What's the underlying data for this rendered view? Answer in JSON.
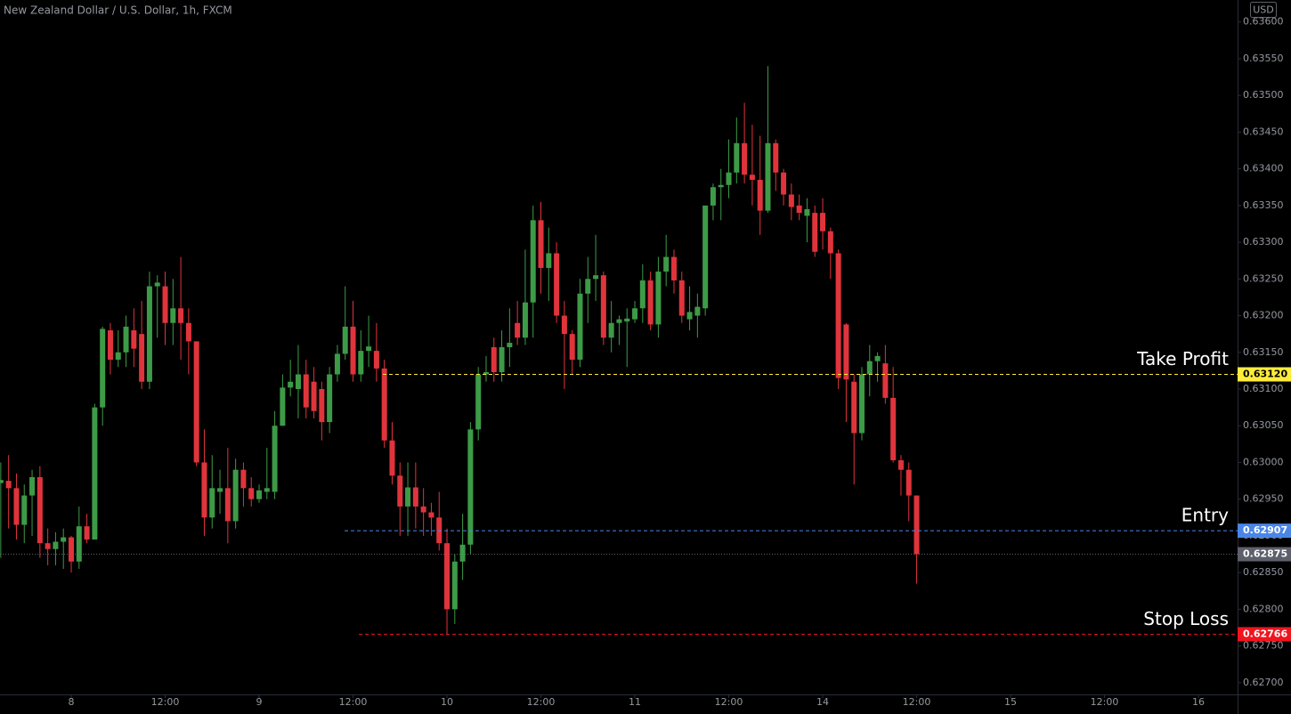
{
  "chart_data": {
    "type": "candlestick",
    "title": "New Zealand Dollar / U.S. Dollar, 1h, FXCM",
    "currency": "USD",
    "up_color": "#3d9b47",
    "down_color": "#e0343c",
    "xlim": [
      -0.1,
      158
    ],
    "ylim": [
      0.62684,
      0.6363
    ],
    "xticks": [
      {
        "value": 9,
        "label": "8"
      },
      {
        "value": 21,
        "label": "12:00"
      },
      {
        "value": 33,
        "label": "9"
      },
      {
        "value": 45,
        "label": "12:00"
      },
      {
        "value": 57,
        "label": "10"
      },
      {
        "value": 69,
        "label": "12:00"
      },
      {
        "value": 81,
        "label": "11"
      },
      {
        "value": 93,
        "label": "12:00"
      },
      {
        "value": 105,
        "label": "14"
      },
      {
        "value": 117,
        "label": "12:00"
      },
      {
        "value": 129,
        "label": "15"
      },
      {
        "value": 141,
        "label": "12:00"
      },
      {
        "value": 153,
        "label": "16"
      }
    ],
    "yticks": [
      {
        "value": 0.627,
        "label": "0.62700"
      },
      {
        "value": 0.6275,
        "label": "0.62750"
      },
      {
        "value": 0.628,
        "label": "0.62800"
      },
      {
        "value": 0.6285,
        "label": "0.62850"
      },
      {
        "value": 0.629,
        "label": "0.62900"
      },
      {
        "value": 0.6295,
        "label": "0.62950"
      },
      {
        "value": 0.63,
        "label": "0.63000"
      },
      {
        "value": 0.6305,
        "label": "0.63050"
      },
      {
        "value": 0.631,
        "label": "0.63100"
      },
      {
        "value": 0.6315,
        "label": "0.63150"
      },
      {
        "value": 0.632,
        "label": "0.63200"
      },
      {
        "value": 0.6325,
        "label": "0.63250"
      },
      {
        "value": 0.633,
        "label": "0.63300"
      },
      {
        "value": 0.6335,
        "label": "0.63350"
      },
      {
        "value": 0.634,
        "label": "0.63400"
      },
      {
        "value": 0.6345,
        "label": "0.63450"
      },
      {
        "value": 0.635,
        "label": "0.63500"
      },
      {
        "value": 0.6355,
        "label": "0.63550"
      },
      {
        "value": 0.636,
        "label": "0.63600"
      }
    ],
    "open": [
      0.62972,
      0.62975,
      0.62965,
      0.62915,
      0.62955,
      0.6298,
      0.6289,
      0.62882,
      0.62892,
      0.62898,
      0.62865,
      0.62913,
      0.62895,
      0.63075,
      0.6318,
      0.6314,
      0.6315,
      0.6318,
      0.63175,
      0.6311,
      0.6324,
      0.6324,
      0.6319,
      0.6321,
      0.6319,
      0.63165,
      0.63,
      0.62925,
      0.6296,
      0.62965,
      0.6292,
      0.6299,
      0.62965,
      0.6295,
      0.6296,
      0.6296,
      0.6305,
      0.63102,
      0.631,
      0.6312,
      0.6311,
      0.631,
      0.63055,
      0.6312,
      0.63148,
      0.63185,
      0.6312,
      0.63152,
      0.63152,
      0.63128,
      0.6303,
      0.62982,
      0.6294,
      0.62966,
      0.6294,
      0.62932,
      0.62925,
      0.6289,
      0.628,
      0.62865,
      0.62888,
      0.63045,
      0.6312,
      0.63157,
      0.63123,
      0.63157,
      0.6319,
      0.6317,
      0.63218,
      0.6333,
      0.63265,
      0.63285,
      0.632,
      0.63175,
      0.6314,
      0.6323,
      0.6325,
      0.63255,
      0.6317,
      0.6319,
      0.63192,
      0.63195,
      0.6321,
      0.63248,
      0.63188,
      0.6326,
      0.6328,
      0.63248,
      0.63195,
      0.632,
      0.6321,
      0.6335,
      0.63375,
      0.63378,
      0.63395,
      0.63435,
      0.63392,
      0.63385,
      0.63343,
      0.63435,
      0.63395,
      0.63365,
      0.6335,
      0.63336,
      0.6334,
      0.6334,
      0.63315,
      0.63285,
      0.63188,
      0.6311,
      0.6304,
      0.6312,
      0.63138,
      0.63135,
      0.63088,
      0.63003,
      0.6299,
      0.62955
    ],
    "high": [
      0.63,
      0.6301,
      0.62985,
      0.6297,
      0.6299,
      0.62995,
      0.6291,
      0.62905,
      0.6291,
      0.629,
      0.6294,
      0.6293,
      0.6308,
      0.63185,
      0.6319,
      0.6318,
      0.632,
      0.6321,
      0.6322,
      0.6326,
      0.63255,
      0.6326,
      0.6325,
      0.6328,
      0.6321,
      0.63165,
      0.63045,
      0.6301,
      0.6299,
      0.6302,
      0.63005,
      0.63,
      0.6298,
      0.6297,
      0.6302,
      0.6307,
      0.6312,
      0.6314,
      0.6316,
      0.6314,
      0.6313,
      0.6311,
      0.6313,
      0.6316,
      0.6324,
      0.6322,
      0.6318,
      0.632,
      0.6319,
      0.6314,
      0.63055,
      0.63,
      0.63,
      0.63,
      0.62965,
      0.62945,
      0.6296,
      0.6291,
      0.62875,
      0.6293,
      0.63055,
      0.6313,
      0.63145,
      0.6317,
      0.6318,
      0.6321,
      0.6322,
      0.6329,
      0.6335,
      0.63355,
      0.6332,
      0.633,
      0.6322,
      0.6318,
      0.6325,
      0.6328,
      0.6331,
      0.6326,
      0.6322,
      0.632,
      0.6321,
      0.6322,
      0.6327,
      0.6326,
      0.6328,
      0.6331,
      0.6329,
      0.6326,
      0.6324,
      0.6323,
      0.6335,
      0.6338,
      0.634,
      0.6344,
      0.6347,
      0.6349,
      0.6346,
      0.63445,
      0.6354,
      0.6344,
      0.634,
      0.6338,
      0.63365,
      0.6336,
      0.6335,
      0.6336,
      0.6332,
      0.6329,
      0.6319,
      0.6312,
      0.6313,
      0.6316,
      0.6315,
      0.6316,
      0.6313,
      0.6301,
      0.63,
      0.62955
    ],
    "low": [
      0.6287,
      0.6291,
      0.62895,
      0.6289,
      0.629,
      0.6287,
      0.6286,
      0.6286,
      0.62855,
      0.6285,
      0.62855,
      0.6289,
      0.62895,
      0.6305,
      0.6312,
      0.6313,
      0.6313,
      0.6313,
      0.631,
      0.631,
      0.6317,
      0.6316,
      0.6316,
      0.6314,
      0.6312,
      0.62995,
      0.629,
      0.6291,
      0.6293,
      0.6289,
      0.6291,
      0.6294,
      0.6294,
      0.62945,
      0.6295,
      0.6295,
      0.6305,
      0.6309,
      0.6306,
      0.6306,
      0.6306,
      0.6303,
      0.6304,
      0.6311,
      0.6314,
      0.6311,
      0.6311,
      0.6313,
      0.6311,
      0.6302,
      0.6297,
      0.629,
      0.629,
      0.6291,
      0.629,
      0.629,
      0.6288,
      0.62765,
      0.6278,
      0.6284,
      0.62875,
      0.6303,
      0.6311,
      0.6311,
      0.6311,
      0.6313,
      0.6316,
      0.6316,
      0.6317,
      0.6323,
      0.6322,
      0.6319,
      0.631,
      0.6312,
      0.6313,
      0.6319,
      0.6322,
      0.6316,
      0.6315,
      0.6316,
      0.6313,
      0.6319,
      0.6319,
      0.6318,
      0.6317,
      0.6324,
      0.6323,
      0.6319,
      0.6318,
      0.6317,
      0.632,
      0.6333,
      0.6333,
      0.6336,
      0.6338,
      0.6338,
      0.6335,
      0.6331,
      0.6334,
      0.6337,
      0.6335,
      0.6333,
      0.6333,
      0.633,
      0.6328,
      0.6329,
      0.6325,
      0.631,
      0.63055,
      0.6297,
      0.6303,
      0.6309,
      0.6311,
      0.6308,
      0.63,
      0.62955,
      0.6292,
      0.62835
    ],
    "close": [
      0.62976,
      0.62965,
      0.62915,
      0.62955,
      0.6298,
      0.6289,
      0.62882,
      0.62892,
      0.62898,
      0.62865,
      0.62913,
      0.62895,
      0.63075,
      0.63182,
      0.6314,
      0.6315,
      0.63185,
      0.63155,
      0.6311,
      0.6324,
      0.63245,
      0.6319,
      0.6321,
      0.6319,
      0.63165,
      0.63,
      0.62925,
      0.62965,
      0.62965,
      0.6292,
      0.6299,
      0.62965,
      0.6295,
      0.62962,
      0.62965,
      0.6305,
      0.63102,
      0.6311,
      0.6312,
      0.63075,
      0.6307,
      0.63055,
      0.6312,
      0.63148,
      0.63185,
      0.6312,
      0.63152,
      0.63158,
      0.63128,
      0.6303,
      0.62982,
      0.6294,
      0.62966,
      0.6294,
      0.62932,
      0.62925,
      0.6289,
      0.628,
      0.62865,
      0.62888,
      0.63045,
      0.6312,
      0.63123,
      0.63123,
      0.63157,
      0.63163,
      0.6317,
      0.63218,
      0.6333,
      0.63265,
      0.63285,
      0.632,
      0.63175,
      0.6314,
      0.6323,
      0.6325,
      0.63255,
      0.6317,
      0.6319,
      0.63195,
      0.63196,
      0.6321,
      0.63248,
      0.63188,
      0.6326,
      0.6328,
      0.63248,
      0.632,
      0.63205,
      0.63212,
      0.6335,
      0.63375,
      0.63378,
      0.63395,
      0.63435,
      0.63392,
      0.63385,
      0.63343,
      0.63435,
      0.63395,
      0.63365,
      0.63348,
      0.6334,
      0.63345,
      0.63287,
      0.63315,
      0.63285,
      0.63115,
      0.63113,
      0.6304,
      0.6312,
      0.63138,
      0.63145,
      0.63088,
      0.63003,
      0.6299,
      0.62955,
      0.62875
    ],
    "last_price": {
      "value": 0.62875,
      "value_label": "0.62875",
      "color": "#5d606b",
      "label_text_color": "#ffffff"
    },
    "levels": [
      {
        "name": "Take Profit",
        "value": 0.6312,
        "value_label": "0.63120",
        "color": "#ffeb3b",
        "label_text_color": "#000000"
      },
      {
        "name": "Entry",
        "value": 0.62907,
        "value_label": "0.62907",
        "color": "#4a86e8",
        "label_text_color": "#ffffff"
      },
      {
        "name": "Stop Loss",
        "value": 0.62766,
        "value_label": "0.62766",
        "color": "#f0141e",
        "label_text_color": "#ffffff"
      }
    ]
  }
}
